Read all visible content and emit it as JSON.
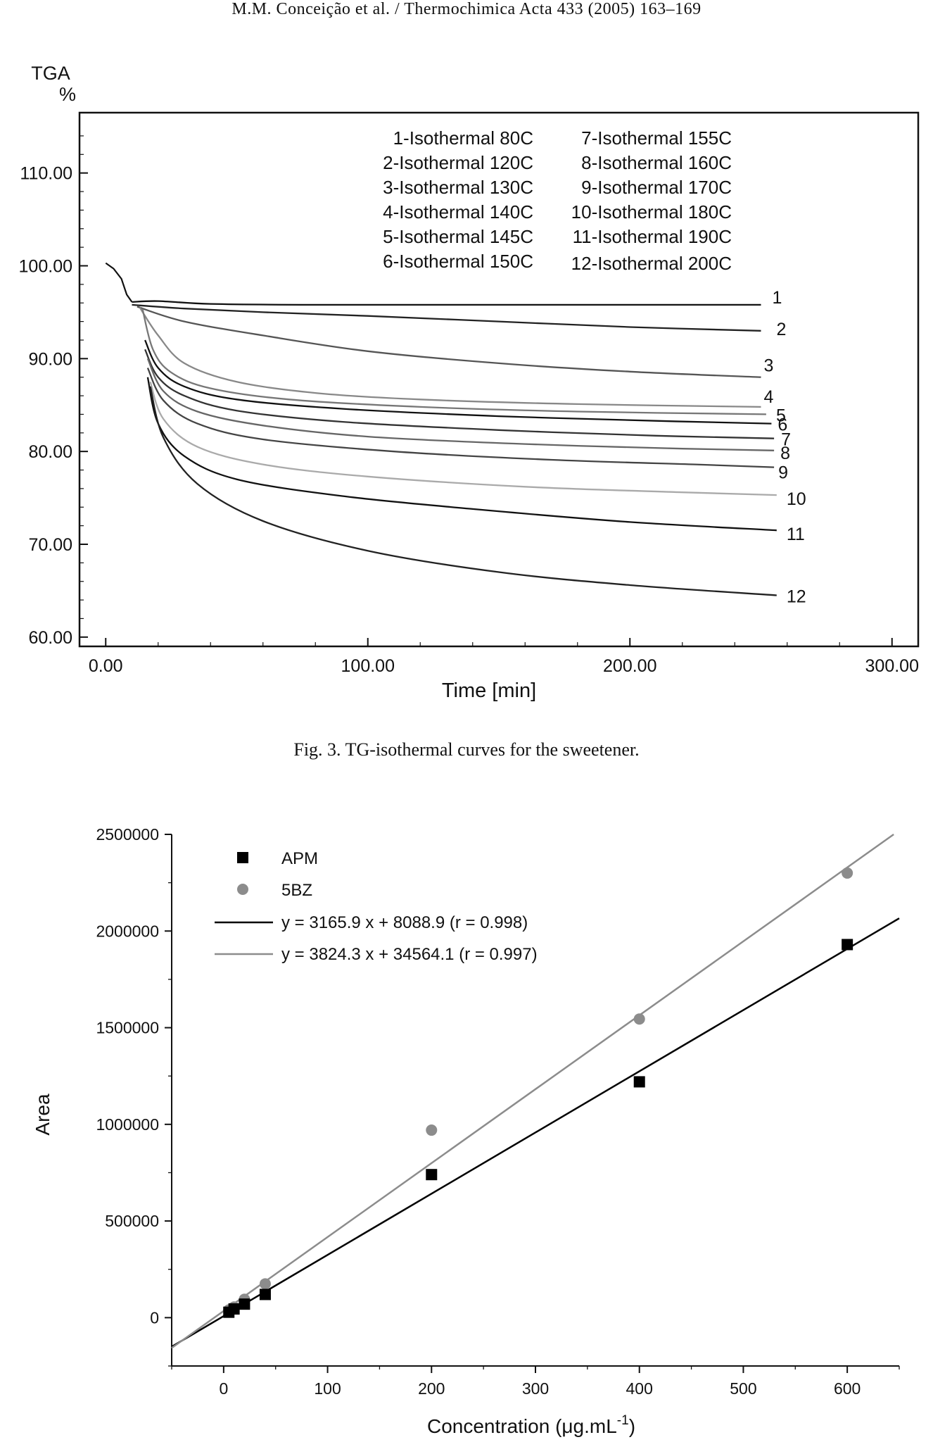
{
  "header": {
    "running_title": "M.M. Conceição et al. / Thermochimica Acta 433 (2005) 163–169"
  },
  "figure3": {
    "caption": "Fig. 3.  TG-isothermal curves for the sweetener."
  },
  "chart_data": [
    {
      "type": "line",
      "ylabel_top": "TGA",
      "ylabel_unit": "%",
      "xlabel": "Time [min]",
      "xlim": [
        -10,
        310
      ],
      "ylim": [
        59,
        116.5
      ],
      "xticks": [
        0,
        100,
        200,
        300
      ],
      "xtick_labels": [
        "0.00",
        "100.00",
        "200.00",
        "300.00"
      ],
      "yticks": [
        60,
        70,
        80,
        90,
        100,
        110
      ],
      "ytick_labels": [
        "60.00",
        "70.00",
        "80.00",
        "90.00",
        "100.00",
        "110.00"
      ],
      "legend_left": [
        "1-Isothermal 80C",
        "2-Isothermal 120C",
        "3-Isothermal 130C",
        "4-Isothermal 140C",
        "5-Isothermal 145C",
        "6-Isothermal 150C"
      ],
      "legend_right": [
        "7-Isothermal 155C",
        "8-Isothermal 160C",
        "9-Isothermal 170C",
        "10-Isothermal 180C",
        "11-Isothermal 190C",
        "12-Isothermal  200C"
      ],
      "legend_placement": "top-right",
      "initial": [
        [
          0,
          100.3
        ],
        [
          3,
          99.7
        ],
        [
          6,
          98.6
        ],
        [
          8,
          96.9
        ],
        [
          10,
          96.1
        ]
      ],
      "series": [
        {
          "label": "1",
          "color": "#111111",
          "points": [
            [
              10,
              96.1
            ],
            [
              20,
              96.2
            ],
            [
              40,
              95.9
            ],
            [
              80,
              95.8
            ],
            [
              150,
              95.8
            ],
            [
              250,
              95.8
            ]
          ]
        },
        {
          "label": "2",
          "color": "#222222",
          "points": [
            [
              10,
              95.8
            ],
            [
              30,
              95.4
            ],
            [
              60,
              95.0
            ],
            [
              100,
              94.6
            ],
            [
              150,
              94.0
            ],
            [
              200,
              93.4
            ],
            [
              250,
              93.0
            ]
          ]
        },
        {
          "label": "3",
          "color": "#555555",
          "points": [
            [
              12,
              95.6
            ],
            [
              30,
              94.0
            ],
            [
              60,
              92.5
            ],
            [
              100,
              90.8
            ],
            [
              150,
              89.5
            ],
            [
              200,
              88.6
            ],
            [
              250,
              88.0
            ]
          ]
        },
        {
          "label": "4",
          "color": "#888888",
          "points": [
            [
              13,
              95.5
            ],
            [
              20,
              92.5
            ],
            [
              30,
              89.5
            ],
            [
              50,
              87.5
            ],
            [
              80,
              86.3
            ],
            [
              120,
              85.6
            ],
            [
              180,
              85.1
            ],
            [
              250,
              84.8
            ]
          ]
        },
        {
          "label": "5",
          "color": "#777777",
          "points": [
            [
              14,
              95.4
            ],
            [
              18,
              91.0
            ],
            [
              25,
              88.5
            ],
            [
              40,
              86.8
            ],
            [
              70,
              85.6
            ],
            [
              120,
              84.8
            ],
            [
              180,
              84.3
            ],
            [
              252,
              84.0
            ]
          ]
        },
        {
          "label": "6",
          "color": "#111111",
          "points": [
            [
              15,
              92.0
            ],
            [
              20,
              89.0
            ],
            [
              30,
              87.0
            ],
            [
              50,
              85.6
            ],
            [
              90,
              84.6
            ],
            [
              150,
              83.8
            ],
            [
              210,
              83.3
            ],
            [
              254,
              83.0
            ]
          ]
        },
        {
          "label": "7",
          "color": "#333333",
          "points": [
            [
              15,
              91.0
            ],
            [
              20,
              88.0
            ],
            [
              30,
              86.0
            ],
            [
              50,
              84.4
            ],
            [
              90,
              83.2
            ],
            [
              150,
              82.3
            ],
            [
              210,
              81.7
            ],
            [
              255,
              81.4
            ]
          ]
        },
        {
          "label": "8",
          "color": "#666666",
          "points": [
            [
              16,
              90.0
            ],
            [
              22,
              86.5
            ],
            [
              35,
              84.3
            ],
            [
              60,
              82.8
            ],
            [
              100,
              81.6
            ],
            [
              160,
              80.8
            ],
            [
              220,
              80.3
            ],
            [
              255,
              80.1
            ]
          ]
        },
        {
          "label": "9",
          "color": "#444444",
          "points": [
            [
              16,
              89.0
            ],
            [
              22,
              85.5
            ],
            [
              35,
              83.0
            ],
            [
              60,
              81.3
            ],
            [
              110,
              80.0
            ],
            [
              170,
              79.1
            ],
            [
              225,
              78.6
            ],
            [
              255,
              78.3
            ]
          ]
        },
        {
          "label": "10",
          "color": "#aaaaaa",
          "points": [
            [
              17,
              87.5
            ],
            [
              22,
              83.5
            ],
            [
              35,
              80.5
            ],
            [
              60,
              78.6
            ],
            [
              100,
              77.3
            ],
            [
              160,
              76.2
            ],
            [
              220,
              75.6
            ],
            [
              256,
              75.3
            ]
          ]
        },
        {
          "label": "11",
          "color": "#111111",
          "points": [
            [
              16,
              88.0
            ],
            [
              20,
              83.0
            ],
            [
              30,
              79.5
            ],
            [
              50,
              77.0
            ],
            [
              90,
              75.2
            ],
            [
              140,
              73.8
            ],
            [
              200,
              72.4
            ],
            [
              256,
              71.5
            ]
          ]
        },
        {
          "label": "12",
          "color": "#222222",
          "points": [
            [
              17,
              87.0
            ],
            [
              22,
              81.5
            ],
            [
              35,
              76.5
            ],
            [
              60,
              72.5
            ],
            [
              100,
              69.3
            ],
            [
              150,
              67.0
            ],
            [
              200,
              65.6
            ],
            [
              256,
              64.5
            ]
          ]
        }
      ]
    },
    {
      "type": "scatter",
      "ylabel": "Area",
      "xlabel": "Concentration (μg.mL",
      "xlabel_sup": "-1",
      "xlabel_close": ")",
      "xlim": [
        -50,
        650
      ],
      "ylim": [
        -250000,
        2500000
      ],
      "xticks": [
        0,
        100,
        200,
        300,
        400,
        500,
        600
      ],
      "xtick_labels": [
        "0",
        "100",
        "200",
        "300",
        "400",
        "500",
        "600"
      ],
      "yticks": [
        0,
        500000,
        1000000,
        1500000,
        2000000,
        2500000
      ],
      "ytick_labels": [
        "0",
        "500000",
        "1000000",
        "1500000",
        "2000000",
        "2500000"
      ],
      "legend_placement": "top-left",
      "series": [
        {
          "name": "APM",
          "marker": "square",
          "color": "#000000",
          "x": [
            5,
            10,
            20,
            40,
            200,
            400,
            600
          ],
          "y": [
            28000,
            45000,
            70000,
            120000,
            740000,
            1220000,
            1930000
          ]
        },
        {
          "name": "5BZ",
          "marker": "circle",
          "color": "#8c8c8c",
          "x": [
            5,
            10,
            20,
            40,
            200,
            400,
            600
          ],
          "y": [
            40000,
            55000,
            95000,
            175000,
            970000,
            1545000,
            2300000
          ]
        }
      ],
      "fits": [
        {
          "label": "y = 3165.9 x + 8088.9 (r = 0.998)",
          "slope": 3165.9,
          "intercept": 8088.9,
          "color": "#000000"
        },
        {
          "label": "y = 3824.3 x + 34564.1 (r = 0.997)",
          "slope": 3824.3,
          "intercept": 34564.1,
          "color": "#8c8c8c"
        }
      ]
    }
  ]
}
